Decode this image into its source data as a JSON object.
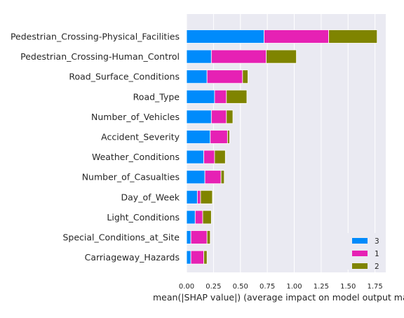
{
  "chart_data": {
    "type": "bar",
    "orientation": "horizontal",
    "stacked": true,
    "categories": [
      "Pedestrian_Crossing-Physical_Facilities",
      "Pedestrian_Crossing-Human_Control",
      "Road_Surface_Conditions",
      "Road_Type",
      "Number_of_Vehicles",
      "Accident_Severity",
      "Weather_Conditions",
      "Number_of_Casualties",
      "Day_of_Week",
      "Light_Conditions",
      "Special_Conditions_at_Site",
      "Carriageway_Hazards"
    ],
    "series": [
      {
        "name": "3",
        "color": "#008bfb",
        "values": [
          0.72,
          0.23,
          0.19,
          0.26,
          0.23,
          0.22,
          0.16,
          0.17,
          0.1,
          0.08,
          0.04,
          0.04
        ]
      },
      {
        "name": "1",
        "color": "#e621b4",
        "values": [
          0.6,
          0.51,
          0.33,
          0.11,
          0.14,
          0.16,
          0.1,
          0.15,
          0.03,
          0.07,
          0.15,
          0.12
        ]
      },
      {
        "name": "2",
        "color": "#7f8400",
        "values": [
          0.45,
          0.28,
          0.05,
          0.19,
          0.06,
          0.02,
          0.1,
          0.03,
          0.11,
          0.08,
          0.03,
          0.03
        ]
      }
    ],
    "xlabel": "mean(|SHAP value|) (average impact on model output magnitude)",
    "xlim": [
      0,
      1.85
    ],
    "xticks": [
      0.0,
      0.25,
      0.5,
      0.75,
      1.0,
      1.25,
      1.5,
      1.75
    ],
    "xtick_labels": [
      "0.00",
      "0.25",
      "0.50",
      "0.75",
      "1.00",
      "1.25",
      "1.50",
      "1.75"
    ],
    "legend": {
      "placement": "bottom-right",
      "entries": [
        {
          "label": "3",
          "color": "#008bfb"
        },
        {
          "label": "1",
          "color": "#e621b4"
        },
        {
          "label": "2",
          "color": "#7f8400"
        }
      ]
    },
    "grid": true,
    "background": "#eaeaf2"
  }
}
